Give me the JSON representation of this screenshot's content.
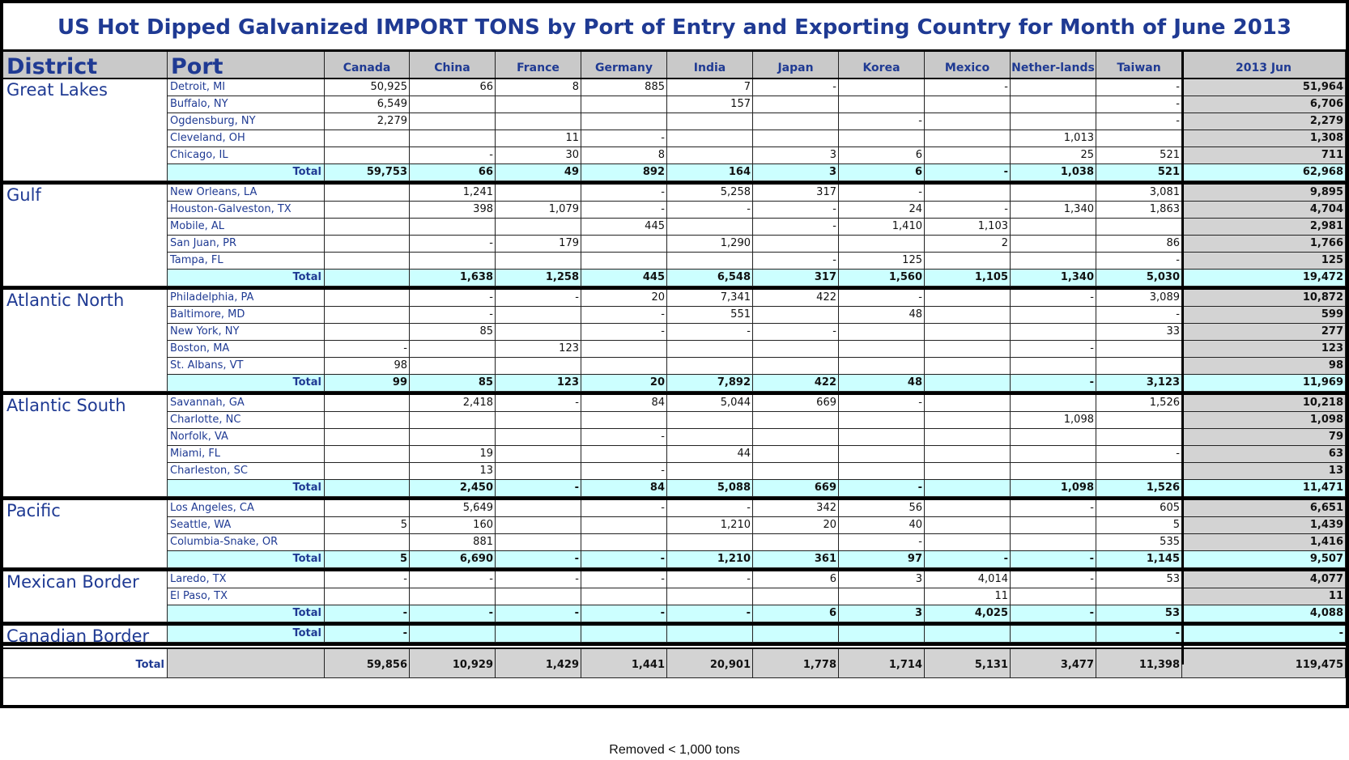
{
  "title": "US Hot Dipped Galvanized IMPORT TONS by Port of Entry and Exporting Country for Month of June 2013",
  "footnote": "Removed < 1,000 tons",
  "colors": {
    "title": "#1f3a93",
    "header_bg": "#c9c9c9",
    "total_row_bg": "#ccffff",
    "year_col_bg": "#d3d3d3"
  },
  "chart_data": {
    "type": "table",
    "columns": [
      "District",
      "Port",
      "Canada",
      "China",
      "France",
      "Germany",
      "India",
      "Japan",
      "Korea",
      "Mexico",
      "Nether-lands",
      "Taiwan",
      "2013 Jun"
    ],
    "total_label": "Total",
    "districts": [
      {
        "name": "Great Lakes",
        "rows": [
          {
            "port": "Detroit, MI",
            "values": [
              "50,925",
              "66",
              "8",
              "885",
              "7",
              "-",
              "",
              "-",
              "",
              "-",
              "51,964"
            ]
          },
          {
            "port": "Buffalo, NY",
            "values": [
              "6,549",
              "",
              "",
              "",
              "157",
              "",
              "",
              "",
              "",
              "-",
              "6,706"
            ]
          },
          {
            "port": "Ogdensburg, NY",
            "values": [
              "2,279",
              "",
              "",
              "",
              "",
              "",
              "-",
              "",
              "",
              "-",
              "2,279"
            ]
          },
          {
            "port": "Cleveland, OH",
            "values": [
              "",
              "",
              "11",
              "-",
              "",
              "",
              "",
              "",
              "1,013",
              "",
              "1,308"
            ]
          },
          {
            "port": "Chicago, IL",
            "values": [
              "",
              "-",
              "30",
              "8",
              "",
              "3",
              "6",
              "",
              "25",
              "521",
              "711"
            ]
          }
        ],
        "total": [
          "59,753",
          "66",
          "49",
          "892",
          "164",
          "3",
          "6",
          "-",
          "1,038",
          "521",
          "62,968"
        ]
      },
      {
        "name": "Gulf",
        "rows": [
          {
            "port": "New Orleans, LA",
            "values": [
              "",
              "1,241",
              "",
              "-",
              "5,258",
              "317",
              "-",
              "",
              "",
              "3,081",
              "9,895"
            ]
          },
          {
            "port": "Houston-Galveston, TX",
            "values": [
              "",
              "398",
              "1,079",
              "-",
              "-",
              "-",
              "24",
              "-",
              "1,340",
              "1,863",
              "4,704"
            ]
          },
          {
            "port": "Mobile, AL",
            "values": [
              "",
              "",
              "",
              "445",
              "",
              "-",
              "1,410",
              "1,103",
              "",
              "",
              "2,981"
            ]
          },
          {
            "port": "San Juan, PR",
            "values": [
              "",
              "-",
              "179",
              "",
              "1,290",
              "",
              "",
              "2",
              "",
              "86",
              "1,766"
            ]
          },
          {
            "port": "Tampa, FL",
            "values": [
              "",
              "",
              "",
              "",
              "",
              "-",
              "125",
              "",
              "",
              "-",
              "125"
            ]
          }
        ],
        "total": [
          "",
          "1,638",
          "1,258",
          "445",
          "6,548",
          "317",
          "1,560",
          "1,105",
          "1,340",
          "5,030",
          "19,472"
        ]
      },
      {
        "name": "Atlantic North",
        "rows": [
          {
            "port": "Philadelphia, PA",
            "values": [
              "",
              "-",
              "-",
              "20",
              "7,341",
              "422",
              "-",
              "",
              "-",
              "3,089",
              "10,872"
            ]
          },
          {
            "port": "Baltimore, MD",
            "values": [
              "",
              "-",
              "",
              "-",
              "551",
              "",
              "48",
              "",
              "",
              "-",
              "599"
            ]
          },
          {
            "port": "New York, NY",
            "values": [
              "",
              "85",
              "",
              "-",
              "-",
              "-",
              "",
              "",
              "",
              "33",
              "277"
            ]
          },
          {
            "port": "Boston, MA",
            "values": [
              "-",
              "",
              "123",
              "",
              "",
              "",
              "",
              "",
              "-",
              "",
              "123"
            ]
          },
          {
            "port": "St. Albans, VT",
            "values": [
              "98",
              "",
              "",
              "",
              "",
              "",
              "",
              "",
              "",
              "",
              "98"
            ]
          }
        ],
        "total": [
          "99",
          "85",
          "123",
          "20",
          "7,892",
          "422",
          "48",
          "",
          "-",
          "3,123",
          "11,969"
        ]
      },
      {
        "name": "Atlantic South",
        "rows": [
          {
            "port": "Savannah, GA",
            "values": [
              "",
              "2,418",
              "-",
              "84",
              "5,044",
              "669",
              "-",
              "",
              "",
              "1,526",
              "10,218"
            ]
          },
          {
            "port": "Charlotte, NC",
            "values": [
              "",
              "",
              "",
              "",
              "",
              "",
              "",
              "",
              "1,098",
              "",
              "1,098"
            ]
          },
          {
            "port": "Norfolk, VA",
            "values": [
              "",
              "",
              "",
              "-",
              "",
              "",
              "",
              "",
              "",
              "",
              "79"
            ]
          },
          {
            "port": "Miami, FL",
            "values": [
              "",
              "19",
              "",
              "",
              "44",
              "",
              "",
              "",
              "",
              "-",
              "63"
            ]
          },
          {
            "port": "Charleston, SC",
            "values": [
              "",
              "13",
              "",
              "-",
              "",
              "",
              "",
              "",
              "",
              "",
              "13"
            ]
          }
        ],
        "total": [
          "",
          "2,450",
          "-",
          "84",
          "5,088",
          "669",
          "-",
          "",
          "1,098",
          "1,526",
          "11,471"
        ]
      },
      {
        "name": "Pacific",
        "rows": [
          {
            "port": "Los Angeles, CA",
            "values": [
              "",
              "5,649",
              "",
              "-",
              "-",
              "342",
              "56",
              "",
              "-",
              "605",
              "6,651"
            ]
          },
          {
            "port": "Seattle, WA",
            "values": [
              "5",
              "160",
              "",
              "",
              "1,210",
              "20",
              "40",
              "",
              "",
              "5",
              "1,439"
            ]
          },
          {
            "port": "Columbia-Snake, OR",
            "values": [
              "",
              "881",
              "",
              "",
              "",
              "",
              "-",
              "",
              "",
              "535",
              "1,416"
            ]
          }
        ],
        "total": [
          "5",
          "6,690",
          "-",
          "-",
          "1,210",
          "361",
          "97",
          "-",
          "-",
          "1,145",
          "9,507"
        ]
      },
      {
        "name": "Mexican Border",
        "rows": [
          {
            "port": "Laredo, TX",
            "values": [
              "-",
              "-",
              "-",
              "-",
              "-",
              "6",
              "3",
              "4,014",
              "-",
              "53",
              "4,077"
            ]
          },
          {
            "port": "El Paso, TX",
            "values": [
              "",
              "",
              "",
              "",
              "",
              "",
              "",
              "11",
              "",
              "",
              "11"
            ]
          }
        ],
        "total": [
          "-",
          "-",
          "-",
          "-",
          "-",
          "6",
          "3",
          "4,025",
          "-",
          "53",
          "4,088"
        ]
      },
      {
        "name": "Canadian Border",
        "rows": [],
        "total": [
          "-",
          "",
          "",
          "",
          "",
          "",
          "",
          "",
          "",
          "-",
          "-"
        ]
      }
    ],
    "grand_total": [
      "59,856",
      "10,929",
      "1,429",
      "1,441",
      "20,901",
      "1,778",
      "1,714",
      "5,131",
      "3,477",
      "11,398",
      "119,475"
    ]
  }
}
